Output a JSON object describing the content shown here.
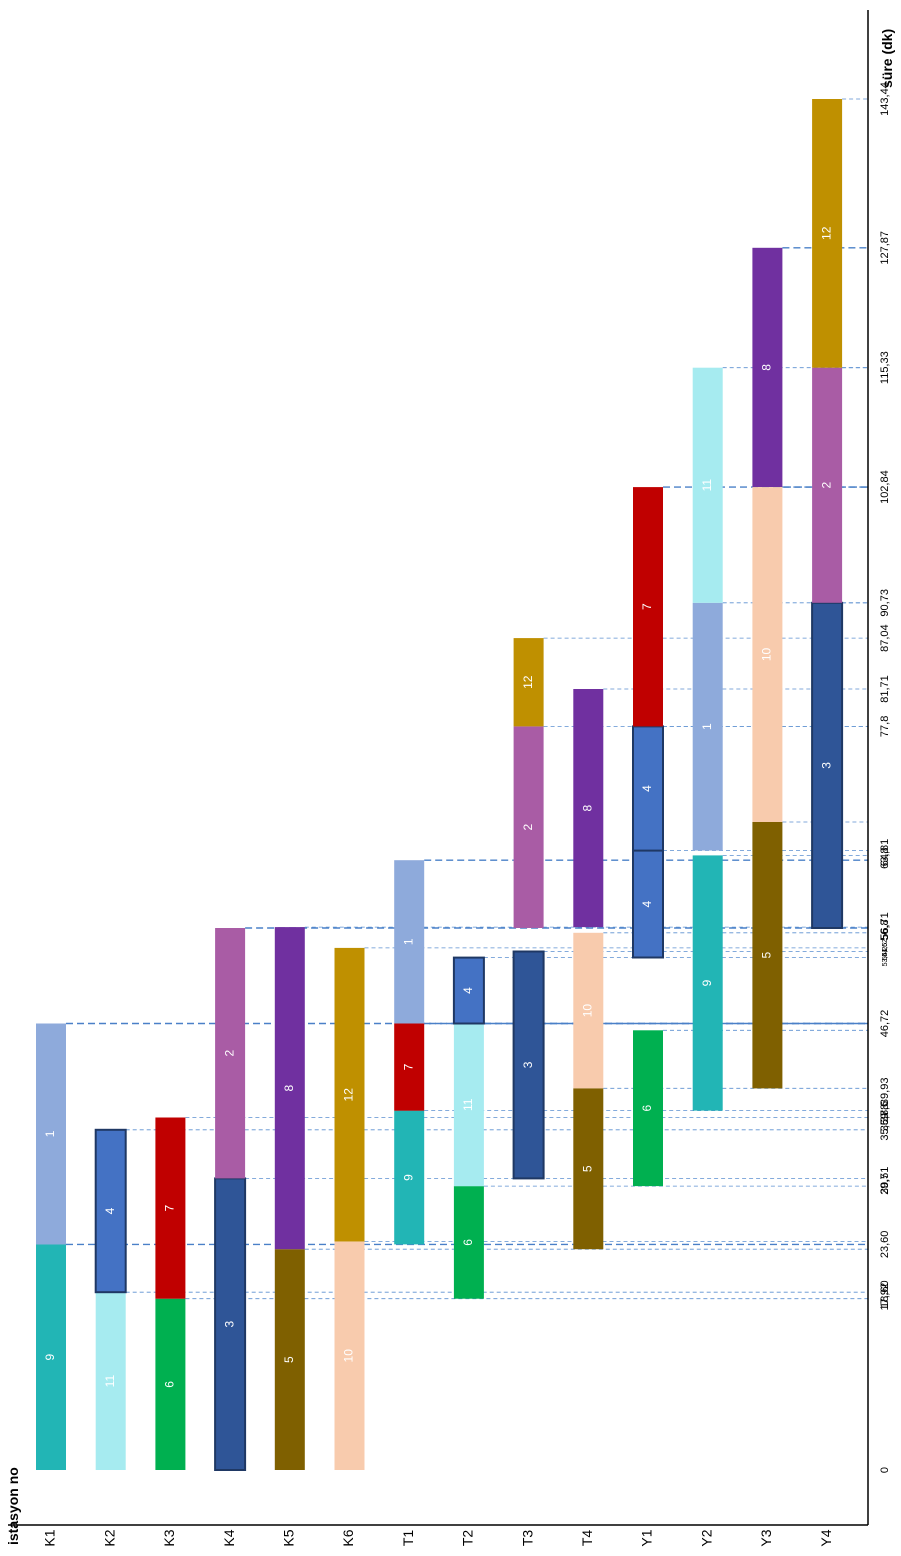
{
  "chart_data": {
    "type": "bar",
    "orientation": "stacked-horizontal-gantt",
    "title": "",
    "xlabel": "süre (dk)",
    "ylabel": "istasyon no",
    "xlim": [
      0,
      143.44
    ],
    "categories": [
      "K1",
      "K2",
      "K3",
      "K4",
      "K5",
      "K6",
      "T1",
      "T2",
      "T3",
      "T4",
      "Y1",
      "Y2",
      "Y3",
      "Y4"
    ],
    "x_ticks": [
      {
        "value": 0,
        "label": "0"
      },
      {
        "value": 17.92,
        "label": "17,92"
      },
      {
        "value": 18.6,
        "label": "18,60"
      },
      {
        "value": 23.6,
        "label": "23,60"
      },
      {
        "value": 29.7,
        "label": "29,7"
      },
      {
        "value": 30.51,
        "label": "30,51"
      },
      {
        "value": 35.59,
        "label": "35,59"
      },
      {
        "value": 36.88,
        "label": "36,88"
      },
      {
        "value": 37.6,
        "label": "37,6"
      },
      {
        "value": 39.93,
        "label": "39,93"
      },
      {
        "value": 46.72,
        "label": "46,72"
      },
      {
        "value": 53.61,
        "label": "53,61"
      },
      {
        "value": 54.25,
        "label": "54,25"
      },
      {
        "value": 54.62,
        "label": "54,62"
      },
      {
        "value": 56.71,
        "label": "56,71"
      },
      {
        "value": 56.8,
        "label": "56,8"
      },
      {
        "value": 63.8,
        "label": "63,8"
      },
      {
        "value": 64.81,
        "label": "64,81"
      },
      {
        "value": 77.8,
        "label": "77,8"
      },
      {
        "value": 81.71,
        "label": "81,71"
      },
      {
        "value": 87.04,
        "label": "87,04"
      },
      {
        "value": 90.73,
        "label": "90,73"
      },
      {
        "value": 102.84,
        "label": "102,84"
      },
      {
        "value": 115.33,
        "label": "115,33"
      },
      {
        "value": 127.87,
        "label": "127,87"
      },
      {
        "value": 143.44,
        "label": "143,44"
      }
    ],
    "job_colors": {
      "1": "#8eaadb",
      "2": "#a95ca5",
      "3": "#2f5597",
      "4": "#4472c4",
      "5": "#7f6000",
      "6": "#00b050",
      "7": "#c00000",
      "8": "#7030a0",
      "9": "#22b5b5",
      "10": "#f8cbad",
      "11": "#a6ebf0",
      "12": "#bf9000"
    },
    "outlined_jobs": [
      "3",
      "4"
    ],
    "major_guides": [
      23.6,
      46.72,
      56.71,
      63.8,
      102.84,
      127.87
    ],
    "stations": [
      {
        "name": "K1",
        "segments": [
          {
            "job": "9",
            "start": 0,
            "end": 23.6
          },
          {
            "job": "1",
            "start": 23.6,
            "end": 46.72
          }
        ]
      },
      {
        "name": "K2",
        "segments": [
          {
            "job": "11",
            "start": 0,
            "end": 18.6
          },
          {
            "job": "4",
            "start": 18.6,
            "end": 35.59
          }
        ]
      },
      {
        "name": "K3",
        "segments": [
          {
            "job": "6",
            "start": 0,
            "end": 17.92
          },
          {
            "job": "7",
            "start": 17.92,
            "end": 36.88
          }
        ]
      },
      {
        "name": "K4",
        "segments": [
          {
            "job": "3",
            "start": 0,
            "end": 30.51
          },
          {
            "job": "2",
            "start": 30.51,
            "end": 56.71
          }
        ]
      },
      {
        "name": "K5",
        "segments": [
          {
            "job": "5",
            "start": 0,
            "end": 23.1
          },
          {
            "job": "8",
            "start": 23.1,
            "end": 56.8
          }
        ]
      },
      {
        "name": "K6",
        "segments": [
          {
            "job": "10",
            "start": 0,
            "end": 23.9
          },
          {
            "job": "12",
            "start": 23.9,
            "end": 54.62
          }
        ]
      },
      {
        "name": "T1",
        "segments": [
          {
            "job": "9",
            "start": 23.6,
            "end": 37.6
          },
          {
            "job": "7",
            "start": 37.6,
            "end": 46.72
          },
          {
            "job": "1",
            "start": 46.72,
            "end": 63.8
          }
        ]
      },
      {
        "name": "T2",
        "segments": [
          {
            "job": "6",
            "start": 17.92,
            "end": 29.7
          },
          {
            "job": "11",
            "start": 29.7,
            "end": 46.72
          },
          {
            "job": "4",
            "start": 46.72,
            "end": 53.61
          }
        ]
      },
      {
        "name": "T3",
        "segments": [
          {
            "job": "3",
            "start": 30.51,
            "end": 54.25
          },
          {
            "job": "2",
            "start": 56.71,
            "end": 77.8
          },
          {
            "job": "12",
            "start": 77.8,
            "end": 87.04
          }
        ]
      },
      {
        "name": "T4",
        "segments": [
          {
            "job": "5",
            "start": 23.1,
            "end": 39.93
          },
          {
            "job": "10",
            "start": 39.93,
            "end": 56.2
          },
          {
            "job": "8",
            "start": 56.8,
            "end": 81.71
          }
        ]
      },
      {
        "name": "Y1",
        "segments": [
          {
            "job": "6",
            "start": 29.7,
            "end": 46.0
          },
          {
            "job": "4",
            "start": 53.61,
            "end": 64.81
          },
          {
            "job": "4",
            "start": 64.81,
            "end": 77.8
          },
          {
            "job": "7",
            "start": 77.8,
            "end": 102.84
          }
        ]
      },
      {
        "name": "Y2",
        "segments": [
          {
            "job": "9",
            "start": 37.6,
            "end": 64.3
          },
          {
            "job": "1",
            "start": 64.81,
            "end": 90.73
          },
          {
            "job": "11",
            "start": 90.73,
            "end": 115.33
          }
        ]
      },
      {
        "name": "Y3",
        "segments": [
          {
            "job": "5",
            "start": 39.93,
            "end": 67.8
          },
          {
            "job": "10",
            "start": 67.8,
            "end": 102.84
          },
          {
            "job": "8",
            "start": 102.84,
            "end": 127.87
          }
        ]
      },
      {
        "name": "Y4",
        "segments": [
          {
            "job": "3",
            "start": 56.71,
            "end": 90.73
          },
          {
            "job": "2",
            "start": 90.73,
            "end": 115.33
          },
          {
            "job": "12",
            "start": 115.33,
            "end": 143.44
          }
        ]
      }
    ],
    "grid": false,
    "legend": "none"
  }
}
